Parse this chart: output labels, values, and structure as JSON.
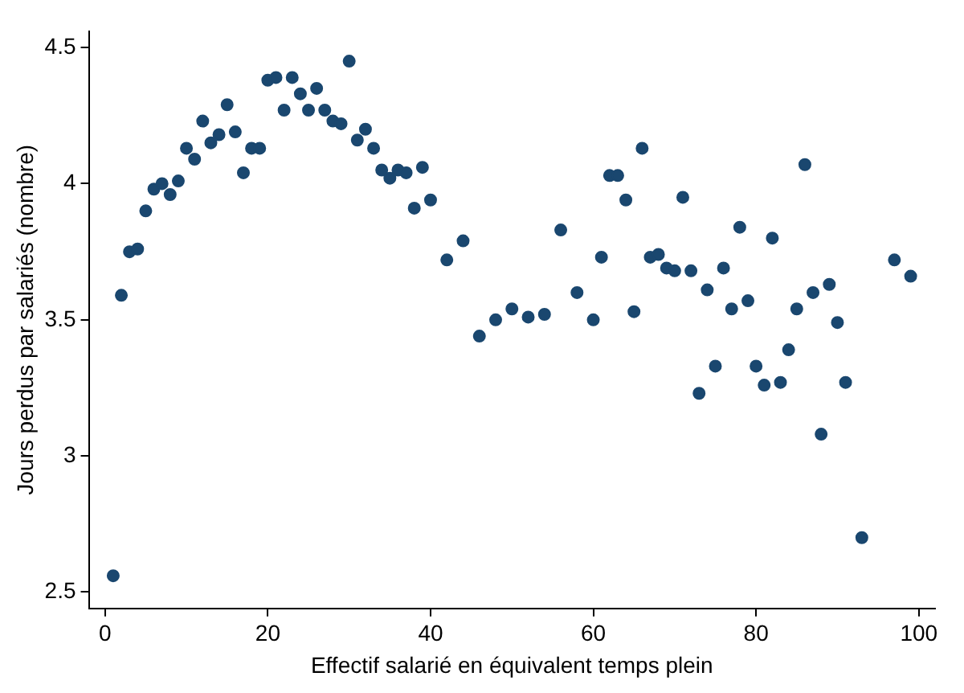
{
  "chart_data": {
    "type": "scatter",
    "xlabel": "Effectif salarié en équivalent temps plein",
    "ylabel": "Jours perdus par salariés (nombre)",
    "x": [
      1,
      2,
      3,
      4,
      5,
      6,
      7,
      8,
      9,
      10,
      11,
      12,
      13,
      14,
      15,
      16,
      17,
      18,
      19,
      20,
      21,
      22,
      23,
      24,
      25,
      26,
      27,
      28,
      29,
      30,
      31,
      32,
      33,
      34,
      35,
      36,
      37,
      38,
      39,
      40,
      42,
      44,
      46,
      48,
      50,
      52,
      54,
      56,
      58,
      60,
      61,
      62,
      63,
      64,
      65,
      66,
      67,
      68,
      69,
      70,
      71,
      72,
      73,
      74,
      75,
      76,
      77,
      78,
      79,
      80,
      81,
      82,
      83,
      84,
      85,
      86,
      87,
      88,
      89,
      90,
      91,
      93,
      97,
      99
    ],
    "series": [
      {
        "color": "#1a476f",
        "values": [
          2.56,
          3.59,
          3.75,
          3.76,
          3.9,
          3.98,
          4.0,
          3.96,
          4.01,
          4.13,
          4.09,
          4.23,
          4.15,
          4.18,
          4.29,
          4.19,
          4.04,
          4.13,
          4.13,
          4.38,
          4.39,
          4.27,
          4.39,
          4.33,
          4.27,
          4.35,
          4.27,
          4.23,
          4.22,
          4.45,
          4.16,
          4.2,
          4.13,
          4.05,
          4.02,
          4.05,
          4.04,
          3.91,
          4.06,
          3.94,
          3.72,
          3.79,
          3.44,
          3.5,
          3.54,
          3.51,
          3.52,
          3.83,
          3.6,
          3.5,
          3.73,
          4.03,
          4.03,
          3.94,
          3.53,
          4.13,
          3.73,
          3.74,
          3.69,
          3.68,
          3.95,
          3.68,
          3.23,
          3.61,
          3.33,
          3.69,
          3.54,
          3.84,
          3.57,
          3.33,
          3.26,
          3.8,
          3.27,
          3.39,
          3.54,
          4.07,
          3.6,
          3.08,
          3.63,
          3.49,
          3.27,
          2.7,
          3.72,
          3.66
        ]
      }
    ],
    "xlim": [
      -2,
      102
    ],
    "ylim": [
      2.44,
      4.56
    ],
    "xticks": [
      0,
      20,
      40,
      60,
      80,
      100
    ],
    "yticks": [
      2.5,
      3,
      3.5,
      4,
      4.5
    ],
    "grid": false,
    "legend": false,
    "marker": "circle"
  }
}
